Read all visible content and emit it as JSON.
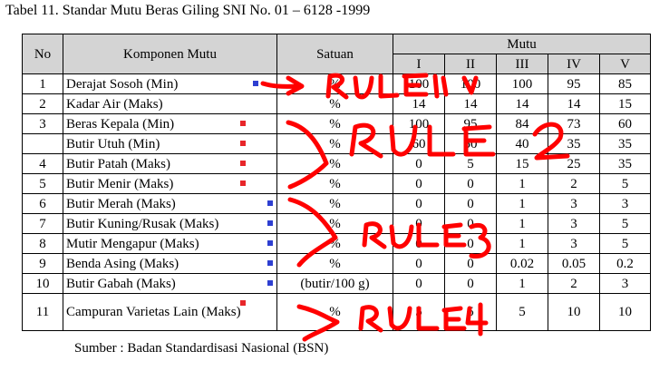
{
  "caption": "Tabel 11. Standar Mutu Beras Giling SNI No. 01 – 6128 -1999",
  "headers": {
    "no": "No",
    "komponen": "Komponen Mutu",
    "satuan": "Satuan",
    "mutu": "Mutu",
    "grades": [
      "I",
      "II",
      "III",
      "IV",
      "V"
    ]
  },
  "rows": [
    {
      "no": "1",
      "komponen": "Derajat Sosoh (Min)",
      "satuan": "%",
      "v": [
        "100",
        "100",
        "100",
        "95",
        "85"
      ],
      "marker": "blue"
    },
    {
      "no": "2",
      "komponen": "Kadar Air (Maks)",
      "satuan": "%",
      "v": [
        "14",
        "14",
        "14",
        "14",
        "15"
      ],
      "marker": ""
    },
    {
      "no": "3",
      "komponen": "Beras Kepala (Min)",
      "satuan": "%",
      "v": [
        "100",
        "95",
        "84",
        "73",
        "60"
      ],
      "marker": "red"
    },
    {
      "no": "",
      "komponen": "Butir Utuh (Min)",
      "satuan": "%",
      "v": [
        "60",
        "50",
        "40",
        "35",
        "35"
      ],
      "marker": "red"
    },
    {
      "no": "4",
      "komponen": "Butir Patah (Maks)",
      "satuan": "%",
      "v": [
        "0",
        "5",
        "15",
        "25",
        "35"
      ],
      "marker": "red"
    },
    {
      "no": "5",
      "komponen": "Butir Menir (Maks)",
      "satuan": "%",
      "v": [
        "0",
        "0",
        "1",
        "2",
        "5"
      ],
      "marker": "red"
    },
    {
      "no": "6",
      "komponen": "Butir Merah (Maks)",
      "satuan": "%",
      "v": [
        "0",
        "0",
        "1",
        "3",
        "3"
      ],
      "marker": "blue"
    },
    {
      "no": "7",
      "komponen": "Butir Kuning/Rusak (Maks)",
      "satuan": "%",
      "v": [
        "0",
        "0",
        "1",
        "3",
        "5"
      ],
      "marker": "blue"
    },
    {
      "no": "8",
      "komponen": "Mutir Mengapur (Maks)",
      "satuan": "%",
      "v": [
        "0",
        "0",
        "1",
        "3",
        "5"
      ],
      "marker": "blue"
    },
    {
      "no": "9",
      "komponen": "Benda Asing (Maks)",
      "satuan": "%",
      "v": [
        "0",
        "0",
        "0.02",
        "0.05",
        "0.2"
      ],
      "marker": "blue"
    },
    {
      "no": "10",
      "komponen": "Butir Gabah (Maks)",
      "satuan": "(butir/100 g)",
      "v": [
        "0",
        "0",
        "1",
        "2",
        "3"
      ],
      "marker": "blue"
    },
    {
      "no": "11",
      "komponen": "Campuran Varietas Lain (Maks)",
      "satuan": "%",
      "v": [
        "5",
        "5",
        "5",
        "10",
        "10"
      ],
      "marker": "red"
    }
  ],
  "source": "Sumber : Badan Standardisasi Nasional (BSN)",
  "annotations": [
    "RULE1",
    "RULE 2",
    "RULE3",
    "RULE4"
  ],
  "colors": {
    "annotation": "#ff0000",
    "header_bg": "#d4d4d4",
    "marker_red": "#e8262a",
    "marker_blue": "#2e3fd1"
  }
}
